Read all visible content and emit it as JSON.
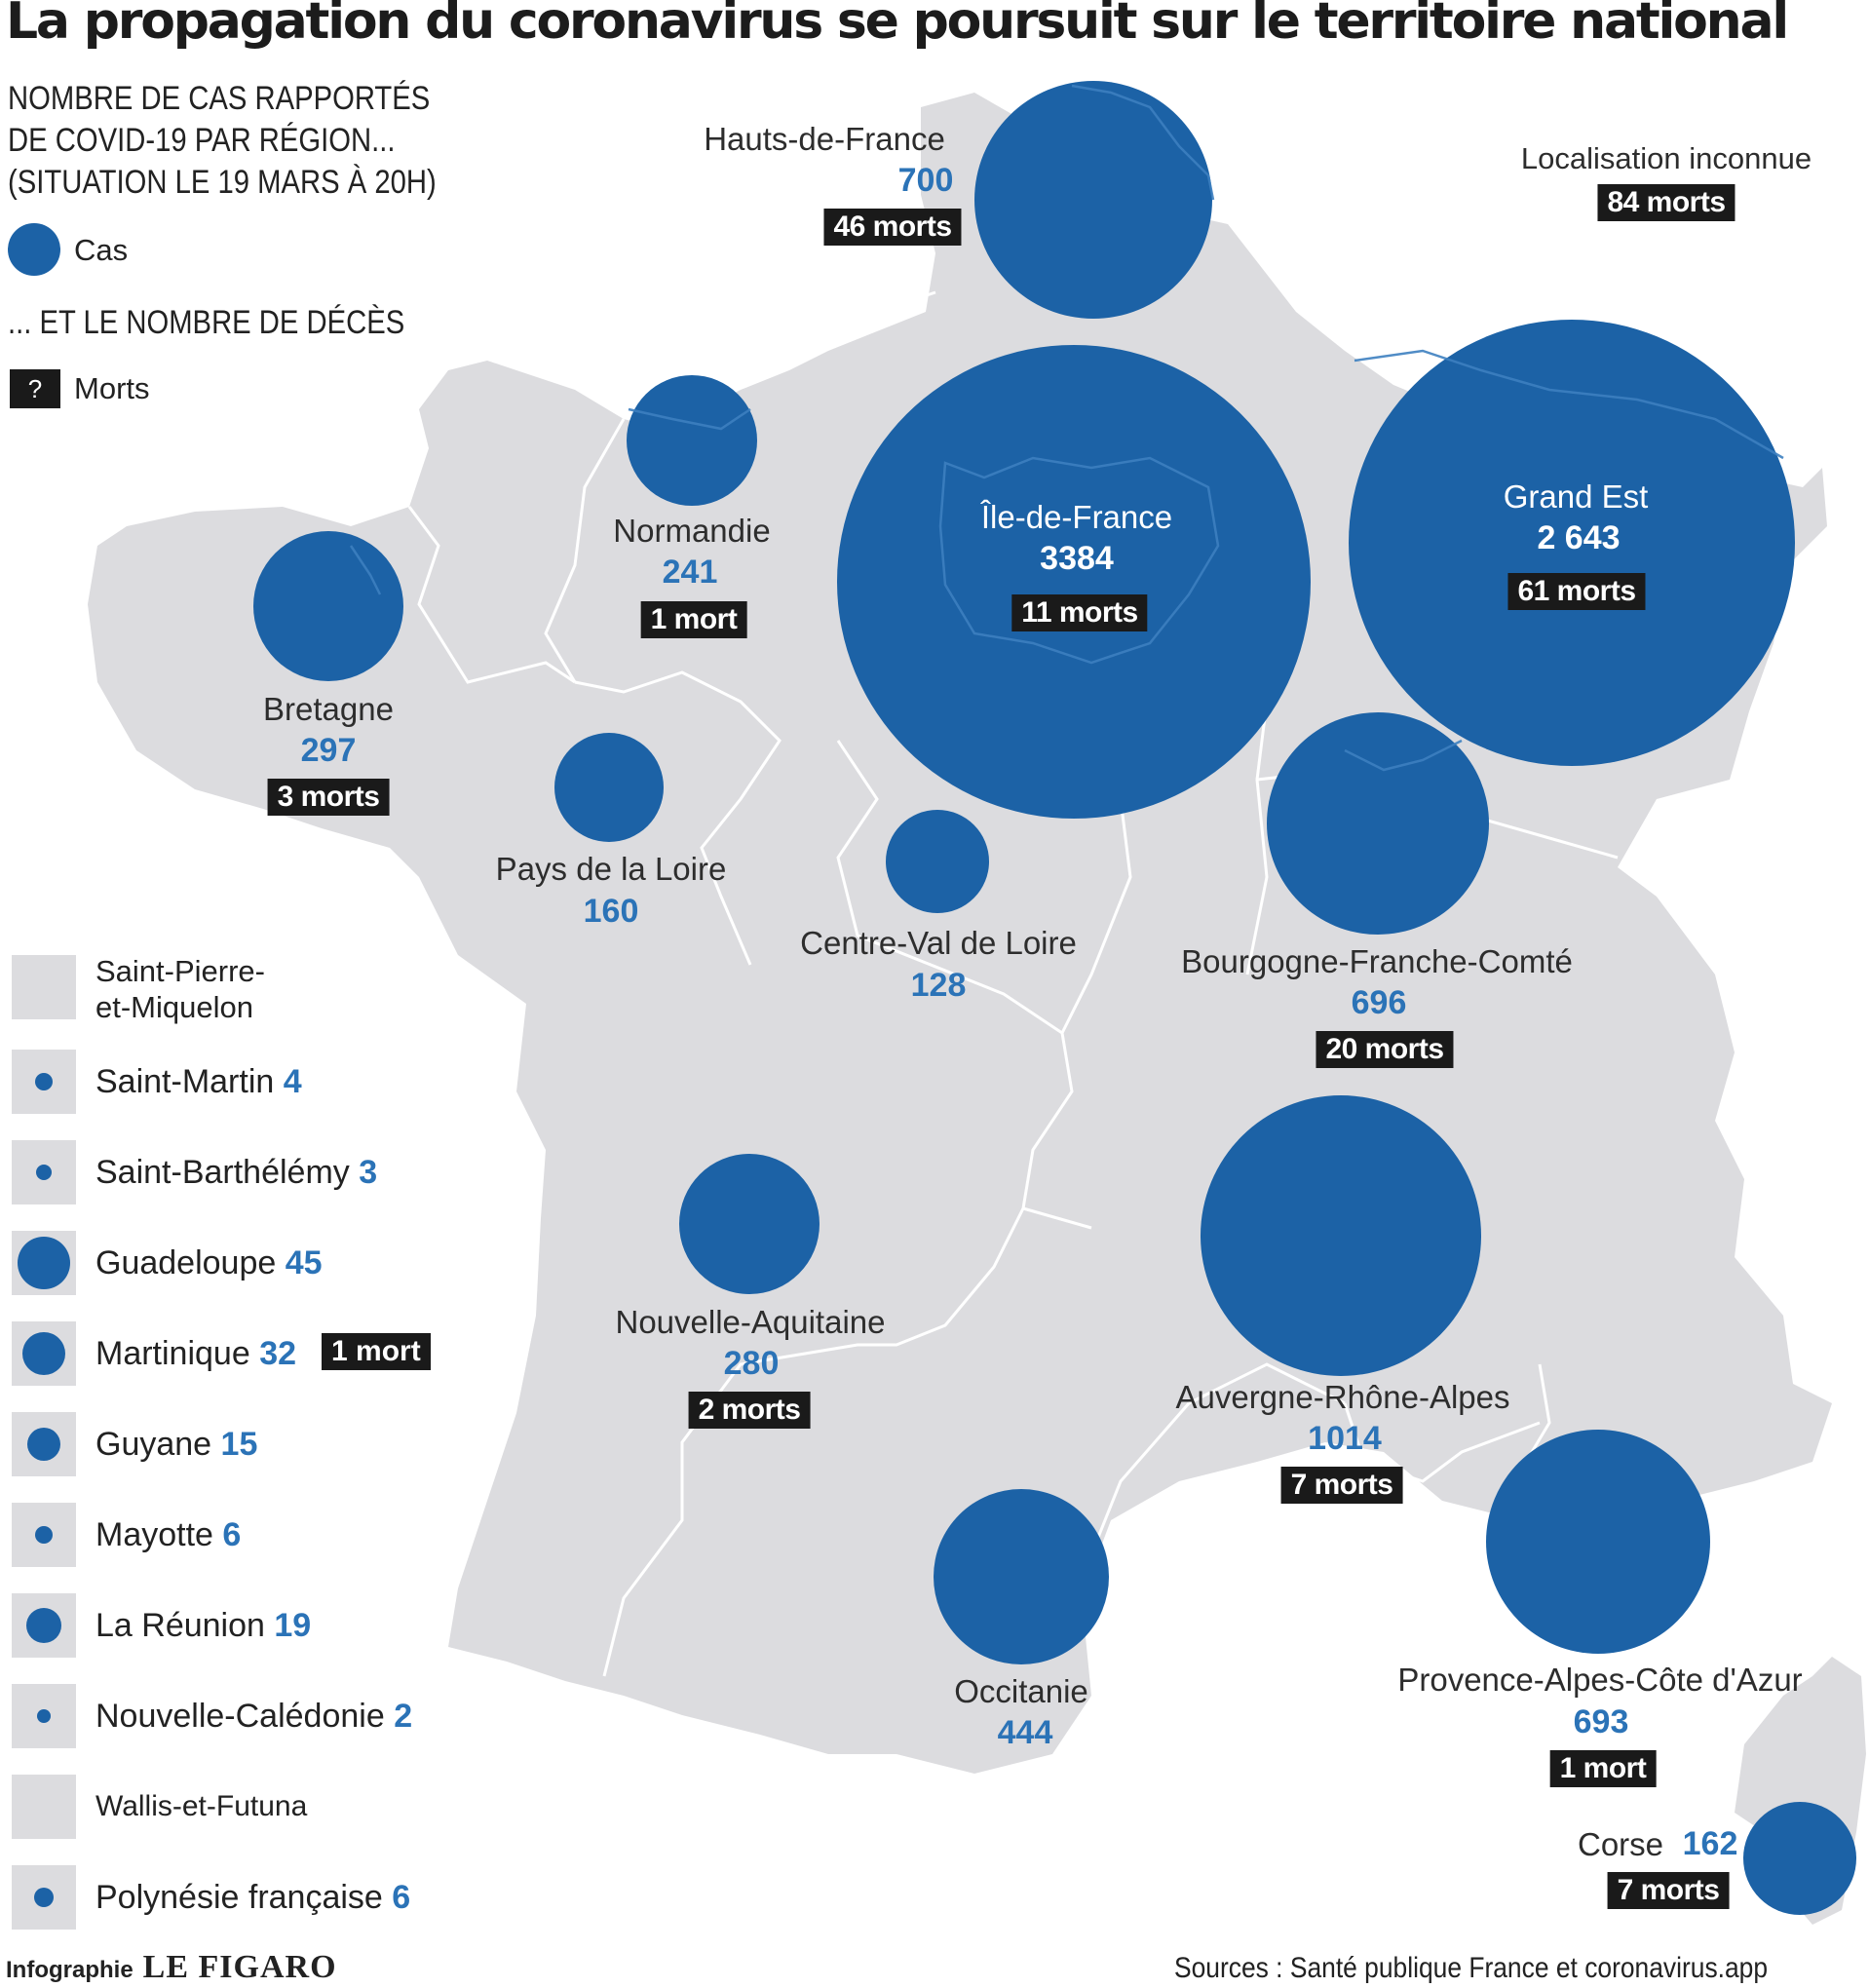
{
  "title": "La propagation du coronavirus se poursuit sur le territoire national",
  "legend": {
    "heading_line1": "NOMBRE DE CAS  RAPPORTÉS",
    "heading_line2": "DE COVID-19 PAR RÉGION...",
    "heading_line3": "(SITUATION LE 19 MARS À 20H)",
    "cases_label": "Cas",
    "deaths_heading": "... ET LE NOMBRE DE DÉCÈS",
    "deaths_box": "?",
    "deaths_label": "Morts"
  },
  "colors": {
    "circle": "#1c62a6",
    "count_text": "#2b73b7",
    "land": "#dcdcdf",
    "death_box": "#1a1a1a"
  },
  "regions": [
    {
      "name": "Hauts-de-France",
      "cases": "700",
      "deaths": "46 morts"
    },
    {
      "name": "Normandie",
      "cases": "241",
      "deaths": "1 mort"
    },
    {
      "name": "Bretagne",
      "cases": "297",
      "deaths": "3 morts"
    },
    {
      "name": "Île-de-France",
      "cases": "3384",
      "deaths": "11 morts"
    },
    {
      "name": "Grand Est",
      "cases": "2 643",
      "deaths": "61 morts"
    },
    {
      "name": "Pays de la Loire",
      "cases": "160",
      "deaths": ""
    },
    {
      "name": "Centre-Val de Loire",
      "cases": "128",
      "deaths": ""
    },
    {
      "name": "Bourgogne-Franche-Comté",
      "cases": "696",
      "deaths": "20 morts"
    },
    {
      "name": "Nouvelle-Aquitaine",
      "cases": "280",
      "deaths": "2 morts"
    },
    {
      "name": "Auvergne-Rhône-Alpes",
      "cases": "1014",
      "deaths": "7 morts"
    },
    {
      "name": "Occitanie",
      "cases": "444",
      "deaths": ""
    },
    {
      "name": "Provence-Alpes-Côte d'Azur",
      "cases": "693",
      "deaths": "1 mort"
    },
    {
      "name": "Corse",
      "cases": "162",
      "deaths": "7 morts"
    }
  ],
  "unknown_location": {
    "label": "Localisation inconnue",
    "deaths": "84 morts"
  },
  "territories": [
    {
      "name": "Saint-Pierre-",
      "name2": "et-Miquelon",
      "cases": "",
      "deaths": ""
    },
    {
      "name": "Saint-Martin",
      "cases": "4",
      "deaths": ""
    },
    {
      "name": "Saint-Barthélémy",
      "cases": "3",
      "deaths": ""
    },
    {
      "name": "Guadeloupe",
      "cases": "45",
      "deaths": ""
    },
    {
      "name": "Martinique",
      "cases": "32",
      "deaths": "1 mort"
    },
    {
      "name": "Guyane",
      "cases": "15",
      "deaths": ""
    },
    {
      "name": "Mayotte",
      "cases": "6",
      "deaths": ""
    },
    {
      "name": "La Réunion",
      "cases": "19",
      "deaths": ""
    },
    {
      "name": "Nouvelle-Calédonie",
      "cases": "2",
      "deaths": ""
    },
    {
      "name": "Wallis-et-Futuna",
      "cases": "",
      "deaths": ""
    },
    {
      "name": "Polynésie française",
      "cases": "6",
      "deaths": ""
    }
  ],
  "footer": {
    "credit": "Infographie",
    "brand": "LE FIGARO",
    "sources": "Sources : Santé publique France et coronavirus.app"
  }
}
